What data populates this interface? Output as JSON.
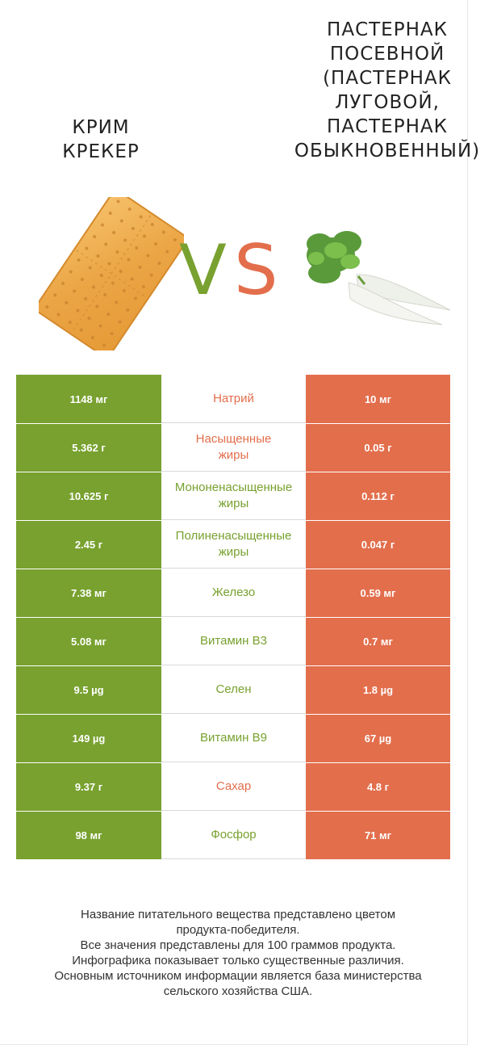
{
  "header": {
    "left_title": "Крим крекер",
    "right_title": "Пастернак посевной (Пастернак луговой, Пастернак обыкновенный)",
    "vs_v": "V",
    "vs_s": "S",
    "left_image_icon": "cracker-image",
    "right_image_icon": "parsnip-image"
  },
  "colors": {
    "left": "#78a12f",
    "right": "#e36e4c"
  },
  "chart_data": {
    "type": "table",
    "series": [
      {
        "name": "Крим крекер",
        "color": "#78a12f"
      },
      {
        "name": "Пастернак посевной (Пастернак луговой, Пастернак обыкновенный)",
        "color": "#e36e4c"
      }
    ],
    "rows": [
      {
        "nutrient_lines": [
          "Натрий"
        ],
        "left": "1148 мг",
        "right": "10 мг",
        "winner": "right"
      },
      {
        "nutrient_lines": [
          "Насыщенные",
          "жиры"
        ],
        "left": "5.362 г",
        "right": "0.05 г",
        "winner": "right"
      },
      {
        "nutrient_lines": [
          "Мононенасыщенные",
          "жиры"
        ],
        "left": "10.625 г",
        "right": "0.112 г",
        "winner": "left"
      },
      {
        "nutrient_lines": [
          "Полиненасыщенные",
          "жиры"
        ],
        "left": "2.45 г",
        "right": "0.047 г",
        "winner": "left"
      },
      {
        "nutrient_lines": [
          "Железо"
        ],
        "left": "7.38 мг",
        "right": "0.59 мг",
        "winner": "left"
      },
      {
        "nutrient_lines": [
          "Витамин B3"
        ],
        "left": "5.08 мг",
        "right": "0.7 мг",
        "winner": "left"
      },
      {
        "nutrient_lines": [
          "Селен"
        ],
        "left": "9.5 µg",
        "right": "1.8 µg",
        "winner": "left"
      },
      {
        "nutrient_lines": [
          "Витамин B9"
        ],
        "left": "149 µg",
        "right": "67 µg",
        "winner": "left"
      },
      {
        "nutrient_lines": [
          "Сахар"
        ],
        "left": "9.37 г",
        "right": "4.8 г",
        "winner": "right"
      },
      {
        "nutrient_lines": [
          "Фосфор"
        ],
        "left": "98 мг",
        "right": "71 мг",
        "winner": "left"
      }
    ]
  },
  "footer": {
    "lines": [
      "Название питательного вещества представлено цветом",
      "продукта-победителя.",
      "Все значения представлены для 100 граммов продукта.",
      "Инфографика показывает только существенные различия.",
      "Основным источником информации является база министерства",
      "сельского хозяйства США."
    ]
  }
}
